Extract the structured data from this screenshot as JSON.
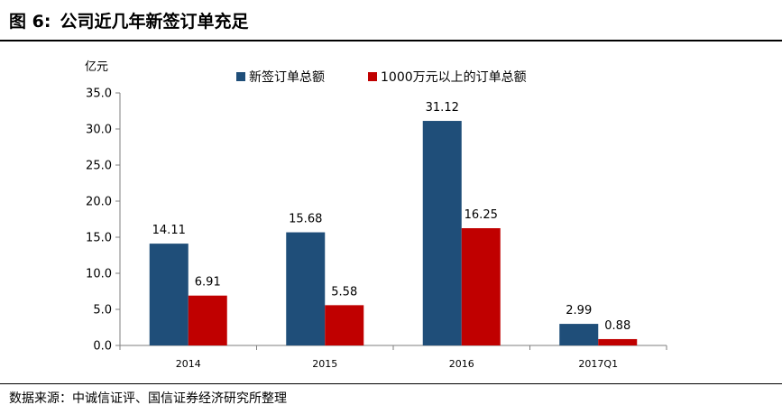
{
  "figure": {
    "number": "图 6:",
    "title": "公司近几年新签订单充足",
    "source": "数据来源：中诚信证评、国信证券经济研究所整理"
  },
  "chart_data": {
    "type": "bar",
    "categories": [
      "2014",
      "2015",
      "2016",
      "2017Q1"
    ],
    "series": [
      {
        "name": "新签订单总额",
        "color": "#1f4e79",
        "values": [
          14.11,
          15.68,
          31.12,
          2.99
        ],
        "labels": [
          "14.11",
          "15.68",
          "31.12",
          "2.99"
        ]
      },
      {
        "name": "1000万元以上的订单总额",
        "color": "#c00000",
        "values": [
          6.91,
          5.58,
          16.25,
          0.88
        ],
        "labels": [
          "6.91",
          "5.58",
          "16.25",
          "0.88"
        ]
      }
    ],
    "ylabel": "亿元",
    "xlabel": "",
    "ylim": [
      0,
      35
    ],
    "yticks": [
      "0.0",
      "5.0",
      "10.0",
      "15.0",
      "20.0",
      "25.0",
      "30.0",
      "35.0"
    ],
    "legend_position": "top",
    "grid": false
  }
}
